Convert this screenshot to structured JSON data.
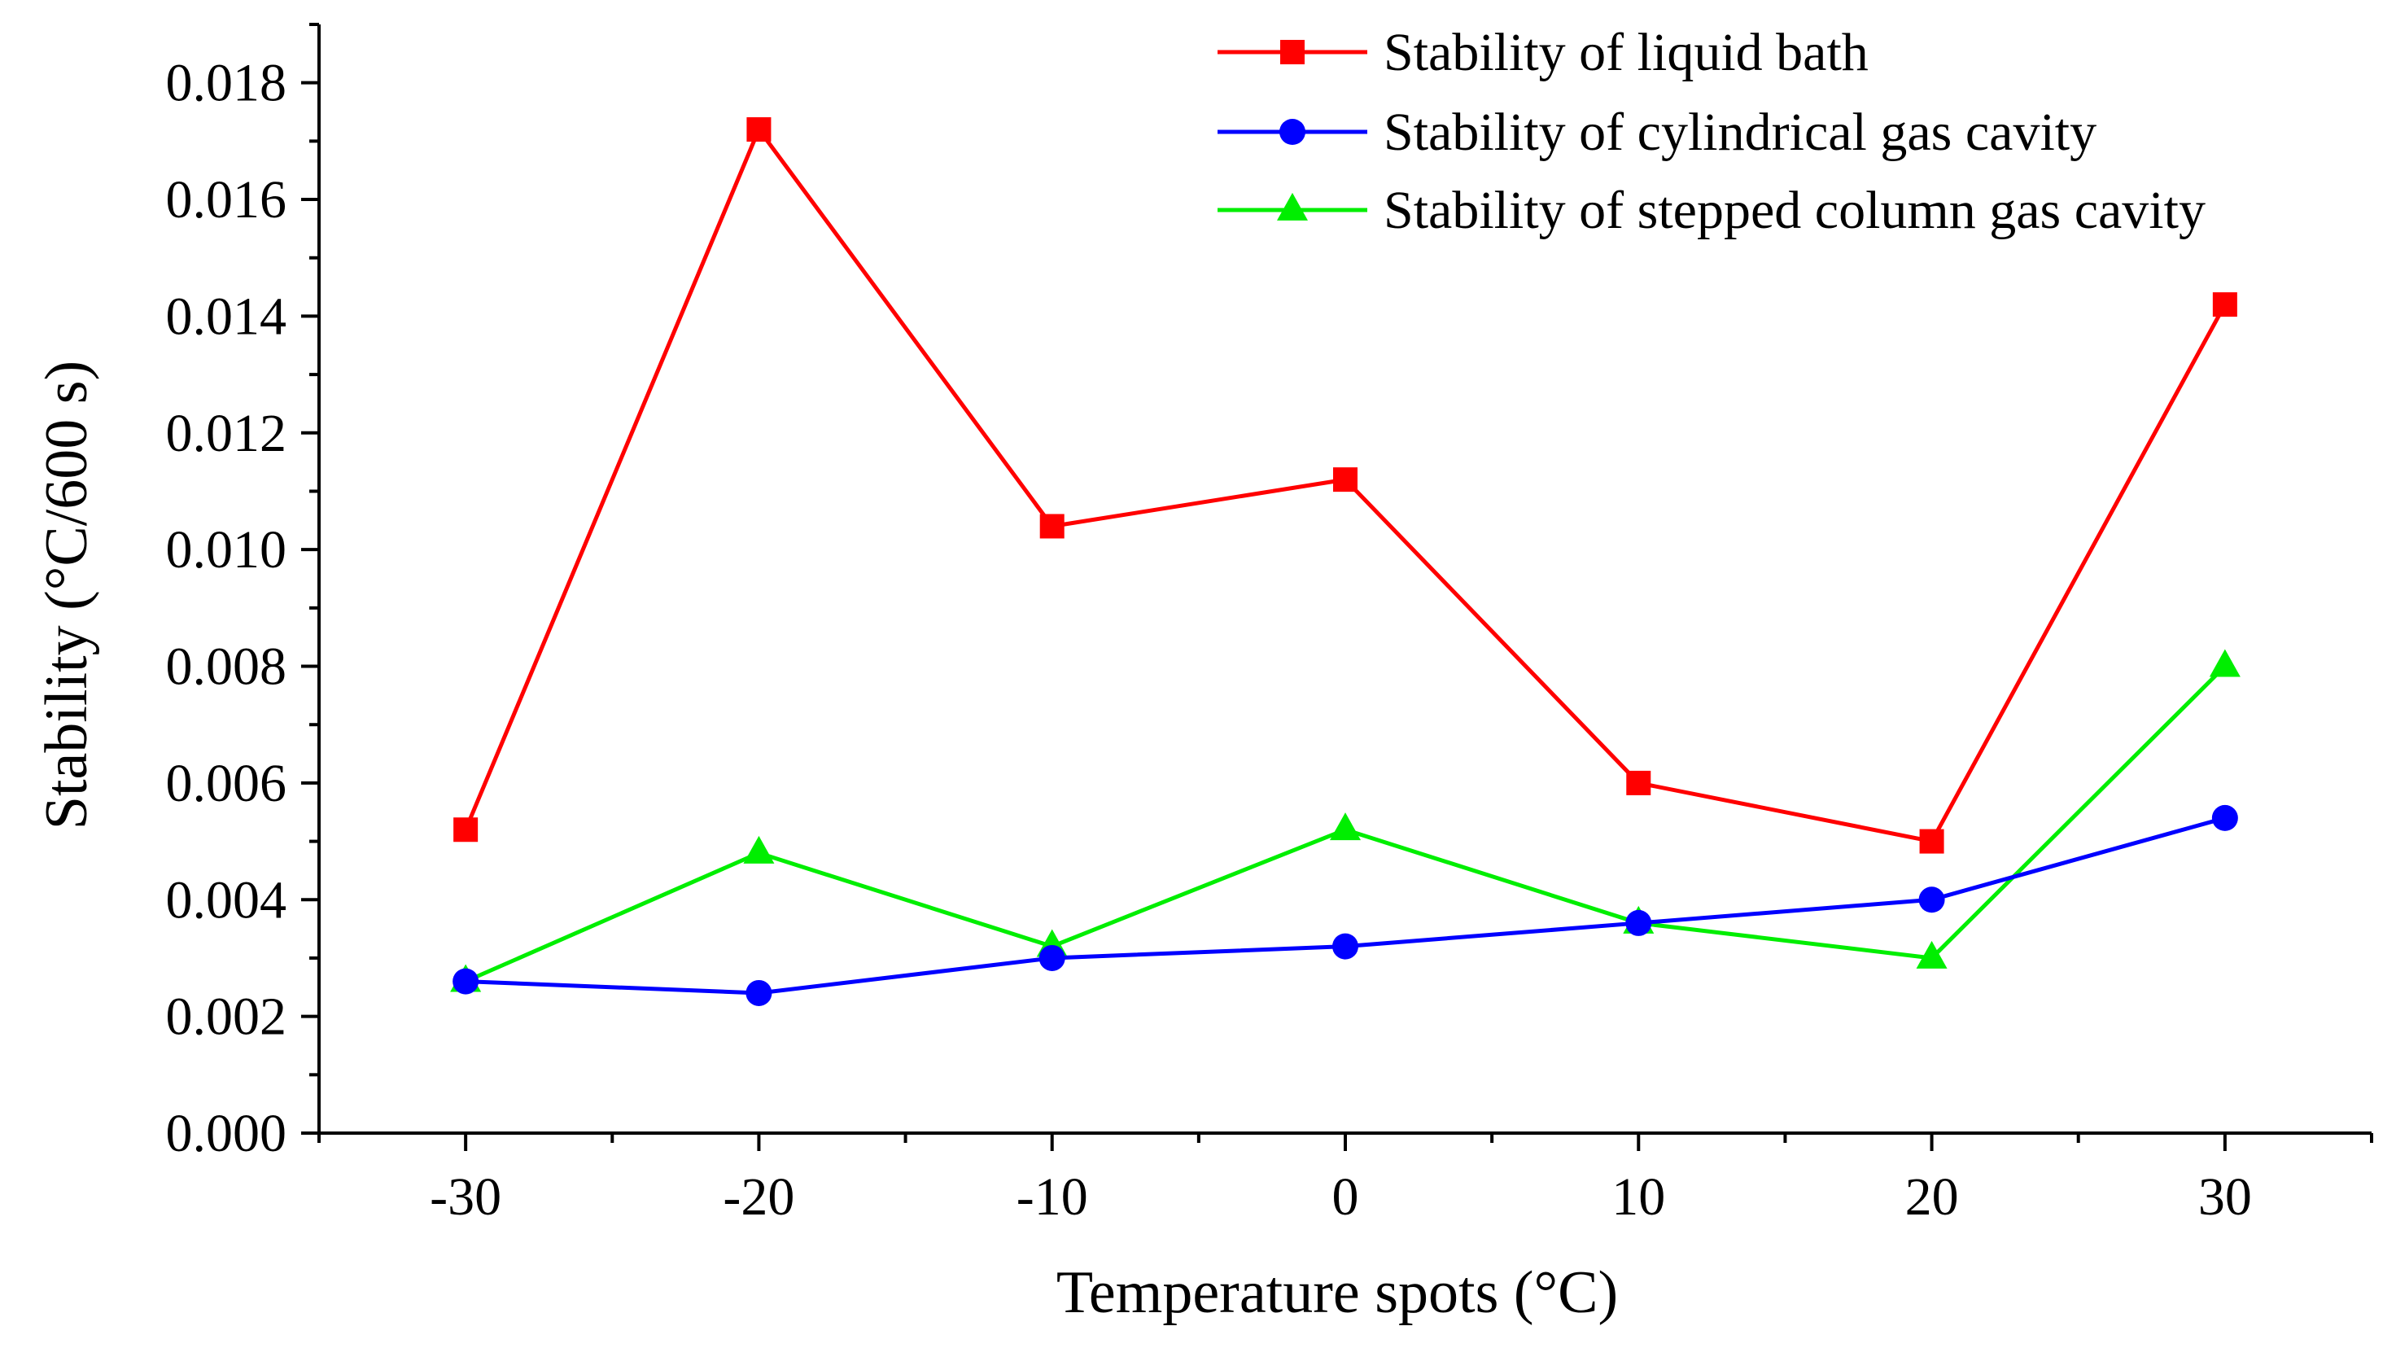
{
  "chart_data": {
    "type": "line",
    "title": "",
    "xlabel": "Temperature spots (°C)",
    "ylabel": "Stability (°C/600 s)",
    "x": [
      -30,
      -20,
      -10,
      0,
      10,
      20,
      30
    ],
    "x_tick_labels": [
      "-30",
      "-20",
      "-10",
      "0",
      "10",
      "20",
      "30"
    ],
    "xlim": [
      -35,
      35
    ],
    "ylim": [
      0,
      0.019
    ],
    "y_ticks": [
      0,
      0.002,
      0.004,
      0.006,
      0.008,
      0.01,
      0.012,
      0.014,
      0.016,
      0.018
    ],
    "y_tick_labels": [
      "0.000",
      "0.002",
      "0.004",
      "0.006",
      "0.008",
      "0.010",
      "0.012",
      "0.014",
      "0.016",
      "0.018"
    ],
    "grid": false,
    "legend_position": "top-right",
    "series": [
      {
        "name": "Stability of liquid bath",
        "color": "#ff0000",
        "marker": "square",
        "values": [
          0.0052,
          0.0172,
          0.0104,
          0.0112,
          0.006,
          0.005,
          0.0142
        ]
      },
      {
        "name": "Stability of cylindrical gas cavity",
        "color": "#0000ff",
        "marker": "circle",
        "values": [
          0.0026,
          0.0024,
          0.003,
          0.0032,
          0.0036,
          0.004,
          0.0054
        ]
      },
      {
        "name": "Stability of stepped column gas cavity",
        "color": "#00ee00",
        "marker": "triangle",
        "values": [
          0.0026,
          0.0048,
          0.0032,
          0.0052,
          0.0036,
          0.003,
          0.008
        ]
      }
    ]
  }
}
